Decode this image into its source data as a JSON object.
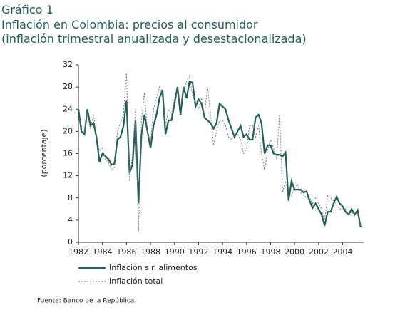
{
  "chart_data": {
    "type": "line",
    "label": "Gráfico 1",
    "title": "Inflación en Colombia: precios al consumidor",
    "subtitle": "(inflación trimestral anualizada y desestacionalizada)",
    "ylabel": "(porcentaje)",
    "source": "Fuente: Banco de la República.",
    "x": [
      1982,
      1982.25,
      1982.5,
      1982.75,
      1983,
      1983.25,
      1983.5,
      1983.75,
      1984,
      1984.25,
      1984.5,
      1984.75,
      1985,
      1985.25,
      1985.5,
      1985.75,
      1986,
      1986.25,
      1986.5,
      1986.75,
      1987,
      1987.25,
      1987.5,
      1987.75,
      1988,
      1988.25,
      1988.5,
      1988.75,
      1989,
      1989.25,
      1989.5,
      1989.75,
      1990,
      1990.25,
      1990.5,
      1990.75,
      1991,
      1991.25,
      1991.5,
      1991.75,
      1992,
      1992.25,
      1992.5,
      1992.75,
      1993,
      1993.25,
      1993.5,
      1993.75,
      1994,
      1994.25,
      1994.5,
      1994.75,
      1995,
      1995.25,
      1995.5,
      1995.75,
      1996,
      1996.25,
      1996.5,
      1996.75,
      1997,
      1997.25,
      1997.5,
      1997.75,
      1998,
      1998.25,
      1998.5,
      1998.75,
      1999,
      1999.25,
      1999.5,
      1999.75,
      2000,
      2000.25,
      2000.5,
      2000.75,
      2001,
      2001.25,
      2001.5,
      2001.75,
      2002,
      2002.25,
      2002.5,
      2002.75,
      2003,
      2003.25,
      2003.5,
      2003.75,
      2004,
      2004.25,
      2004.5,
      2004.75,
      2005,
      2005.25,
      2005.5
    ],
    "series": [
      {
        "name": "Inflación sin alimentos",
        "color": "#1d5f5a",
        "dash": false,
        "values": [
          24,
          20,
          19.5,
          24,
          21,
          21.5,
          19,
          14.5,
          16,
          15.5,
          15,
          14,
          14.2,
          18.5,
          19,
          21,
          25.5,
          12.5,
          14,
          22,
          7,
          19.5,
          23,
          20,
          17,
          21,
          23,
          26,
          27.5,
          19.5,
          22,
          22,
          25,
          28,
          23,
          28,
          26,
          29,
          28.8,
          24.5,
          25.8,
          25,
          22.5,
          22,
          21.5,
          20.5,
          21.5,
          25,
          24.5,
          24,
          22,
          20.5,
          19,
          20,
          21,
          19,
          19.5,
          18.5,
          18.5,
          22.5,
          23,
          21.5,
          16,
          17.5,
          17.5,
          16,
          15.8,
          15.8,
          15.5,
          16.2,
          7.5,
          11,
          9.5,
          9.5,
          9.5,
          9,
          9.2,
          7.5,
          6.2,
          7,
          6,
          5,
          3,
          5.5,
          5.5,
          7,
          8.2,
          7,
          6.5,
          5.5,
          5,
          6,
          5,
          5.8,
          2.7
        ]
      },
      {
        "name": "Inflación total",
        "color": "#777777",
        "dash": true,
        "values": [
          23,
          21,
          20,
          23.5,
          20.5,
          23,
          19,
          16.5,
          17,
          15,
          14.5,
          13,
          13.5,
          20,
          21.5,
          23,
          30.5,
          11,
          16,
          24,
          2,
          22,
          27,
          20,
          18,
          24,
          26,
          28,
          26,
          21,
          24,
          23,
          26,
          27,
          24.5,
          27.5,
          29,
          30,
          26.5,
          25,
          24,
          26,
          23,
          28,
          23,
          17.5,
          20,
          22,
          22,
          21,
          19,
          18.5,
          19.5,
          19.5,
          18.5,
          16,
          17,
          21,
          21,
          19,
          21,
          16,
          13,
          16.5,
          18.5,
          17,
          15,
          23,
          9,
          11,
          8,
          8.5,
          10,
          10.5,
          9,
          8.5,
          8,
          8,
          7,
          8,
          7,
          6,
          4,
          8.5,
          8,
          7.5,
          6.8,
          6,
          6,
          6,
          5,
          5.5,
          5,
          5,
          3
        ]
      }
    ],
    "xlim": [
      1982,
      2005.75
    ],
    "xticks": [
      1982,
      1984,
      1986,
      1988,
      1990,
      1992,
      1994,
      1996,
      1998,
      2000,
      2002,
      2004
    ],
    "ylim": [
      0,
      32
    ],
    "yticks": [
      0,
      4,
      8,
      12,
      16,
      20,
      24,
      28,
      32
    ]
  }
}
